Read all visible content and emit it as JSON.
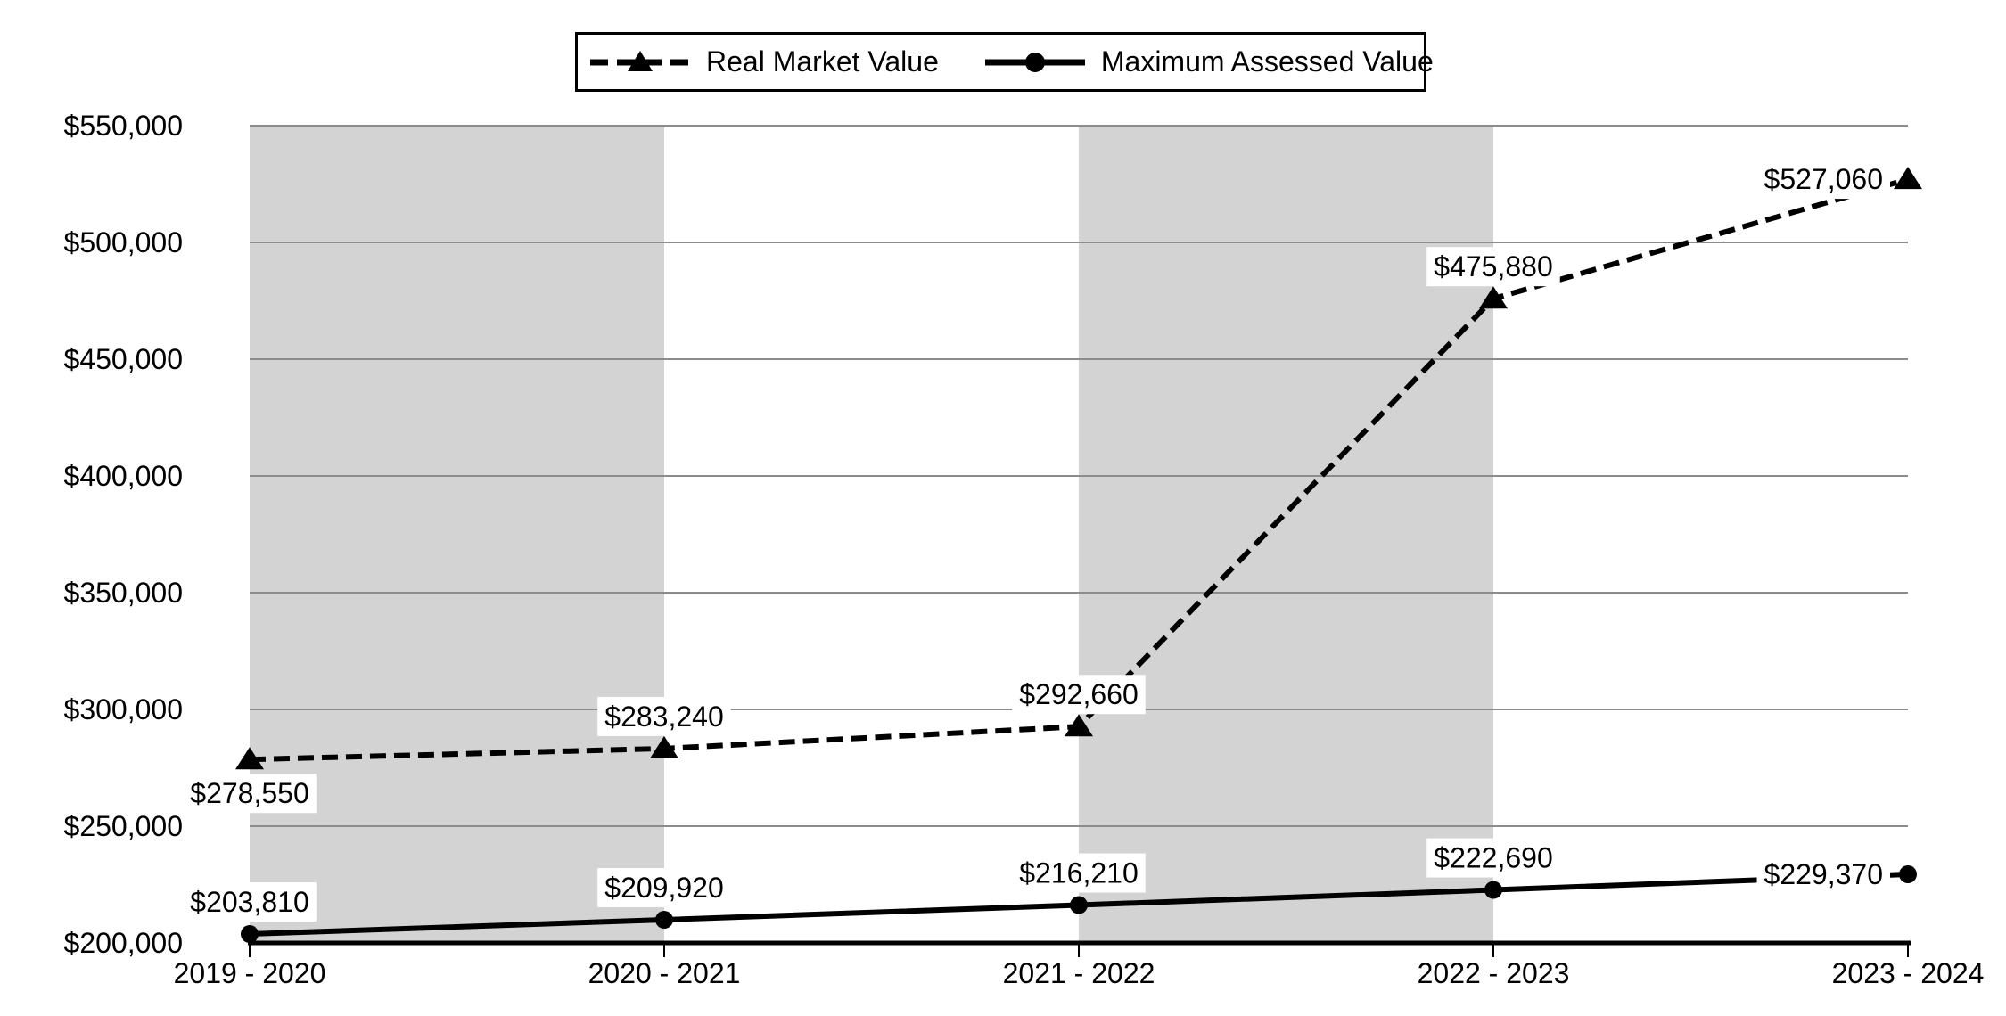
{
  "legend": {
    "items": [
      {
        "label": "Real Market Value",
        "marker": "triangle-icon",
        "line_style": "dashed"
      },
      {
        "label": "Maximum Assessed Value",
        "marker": "circle-icon",
        "line_style": "solid"
      }
    ]
  },
  "chart_data": {
    "type": "line",
    "categories": [
      "2019 - 2020",
      "2020 - 2021",
      "2021 - 2022",
      "2022 - 2023",
      "2023 - 2024"
    ],
    "series": [
      {
        "name": "Real Market Value",
        "line_style": "dashed",
        "marker": "triangle",
        "color": "#000000",
        "values": [
          278550,
          283240,
          292660,
          475880,
          527060
        ],
        "point_labels": [
          "$278,550",
          "$283,240",
          "$292,660",
          "$475,880",
          "$527,060"
        ],
        "label_positions": [
          "below",
          "above",
          "above",
          "above",
          "left"
        ]
      },
      {
        "name": "Maximum Assessed Value",
        "line_style": "solid",
        "marker": "circle",
        "color": "#000000",
        "values": [
          203810,
          209920,
          216210,
          222690,
          229370
        ],
        "point_labels": [
          "$203,810",
          "$209,920",
          "$216,210",
          "$222,690",
          "$229,370"
        ],
        "label_positions": [
          "above",
          "above",
          "above",
          "above",
          "left"
        ]
      }
    ],
    "y_axis": {
      "min": 200000,
      "max": 550000,
      "step": 50000,
      "tick_labels": [
        "$200,000",
        "$250,000",
        "$300,000",
        "$350,000",
        "$400,000",
        "$450,000",
        "$500,000",
        "$550,000"
      ]
    },
    "x_axis": {
      "tick_labels": [
        "2019 - 2020",
        "2020 - 2021",
        "2021 - 2022",
        "2022 - 2023",
        "2023 - 2024"
      ]
    },
    "plot_bands": {
      "band_indexes": [
        0,
        2
      ],
      "color": "#d3d3d3"
    },
    "grid": true,
    "legend_position": "top",
    "colors": {
      "series": "#000000",
      "gridline": "#8c8c8c",
      "axis": "#000000",
      "background": "#ffffff",
      "label_background": "#ffffff",
      "text": "#000000"
    }
  }
}
